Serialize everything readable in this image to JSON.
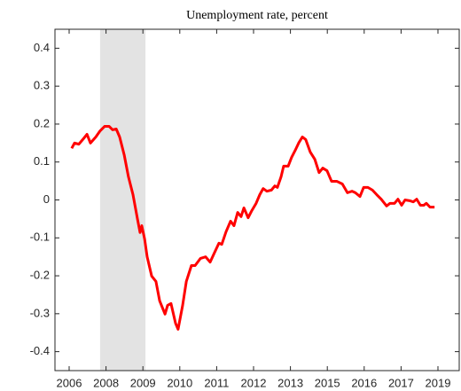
{
  "chart_data": {
    "type": "line",
    "title": "Unemployment rate, percent",
    "x": [
      2006.09,
      2006.19,
      2006.34,
      2006.5,
      2006.63,
      2006.75,
      2006.94,
      2007.09,
      2007.25,
      2007.41,
      2007.53,
      2007.66,
      2007.78,
      2007.94,
      2008.09,
      2008.25,
      2008.41,
      2008.5,
      2008.56,
      2008.66,
      2008.75,
      2008.91,
      2009.06,
      2009.19,
      2009.38,
      2009.47,
      2009.59,
      2009.75,
      2009.84,
      2010.0,
      2010.13,
      2010.31,
      2010.44,
      2010.63,
      2010.81,
      2010.97,
      2011.13,
      2011.28,
      2011.38,
      2011.53,
      2011.69,
      2011.81,
      2011.94,
      2012.06,
      2012.16,
      2012.31,
      2012.44,
      2012.59,
      2012.72,
      2012.84,
      2012.97,
      2013.13,
      2013.25,
      2013.34,
      2013.47,
      2013.56,
      2013.72,
      2013.84,
      2013.97,
      2014.09,
      2014.22,
      2014.34,
      2014.5,
      2014.66,
      2014.81,
      2014.94,
      2015.09,
      2015.25,
      2015.44,
      2015.63,
      2015.81,
      2015.97,
      2016.09,
      2016.25,
      2016.38,
      2016.53,
      2016.69,
      2016.84,
      2017.0,
      2017.19,
      2017.31,
      2017.47,
      2017.59,
      2017.72,
      2017.84,
      2018.0,
      2018.13,
      2018.25,
      2018.38,
      2018.5,
      2018.59,
      2018.72,
      2018.88
    ],
    "series": [
      {
        "color": "#ff0000",
        "values": [
          0.136,
          0.15,
          0.147,
          0.161,
          0.173,
          0.15,
          0.166,
          0.182,
          0.194,
          0.194,
          0.185,
          0.187,
          0.166,
          0.119,
          0.061,
          0.014,
          -0.051,
          -0.086,
          -0.068,
          -0.103,
          -0.15,
          -0.201,
          -0.215,
          -0.266,
          -0.301,
          -0.278,
          -0.273,
          -0.325,
          -0.341,
          -0.278,
          -0.215,
          -0.173,
          -0.173,
          -0.154,
          -0.15,
          -0.164,
          -0.138,
          -0.114,
          -0.117,
          -0.084,
          -0.056,
          -0.068,
          -0.033,
          -0.044,
          -0.021,
          -0.047,
          -0.028,
          -0.009,
          0.014,
          0.03,
          0.023,
          0.026,
          0.037,
          0.033,
          0.061,
          0.089,
          0.089,
          0.112,
          0.131,
          0.15,
          0.166,
          0.159,
          0.126,
          0.107,
          0.072,
          0.084,
          0.077,
          0.049,
          0.049,
          0.042,
          0.019,
          0.023,
          0.019,
          0.009,
          0.033,
          0.033,
          0.026,
          0.014,
          0.002,
          -0.016,
          -0.009,
          -0.009,
          0.002,
          -0.014,
          0,
          -0.002,
          -0.005,
          0.002,
          -0.014,
          -0.014,
          -0.009,
          -0.019,
          -0.019
        ]
      }
    ],
    "shaded_regions": [
      {
        "start": 2007.09,
        "end": 2008.69,
        "color": "#e3e3e3"
      }
    ],
    "xlim": [
      2005.5,
      2019.75
    ],
    "xticks": [
      {
        "value": 2006,
        "label": "2006"
      },
      {
        "value": 2007.3,
        "label": "2008"
      },
      {
        "value": 2008.6,
        "label": "2009"
      },
      {
        "value": 2009.9,
        "label": "2010"
      },
      {
        "value": 2011.2,
        "label": "2011"
      },
      {
        "value": 2012.5,
        "label": "2012"
      },
      {
        "value": 2013.8,
        "label": "2013"
      },
      {
        "value": 2015.1,
        "label": "2015"
      },
      {
        "value": 2016.4,
        "label": "2016"
      },
      {
        "value": 2017.7,
        "label": "2017"
      },
      {
        "value": 2019,
        "label": "2019"
      }
    ],
    "ylim": [
      -0.45,
      0.45
    ],
    "yticks": [
      -0.4,
      -0.3,
      -0.2,
      -0.1,
      0,
      0.1,
      0.2,
      0.3,
      0.4
    ],
    "grid": false
  }
}
